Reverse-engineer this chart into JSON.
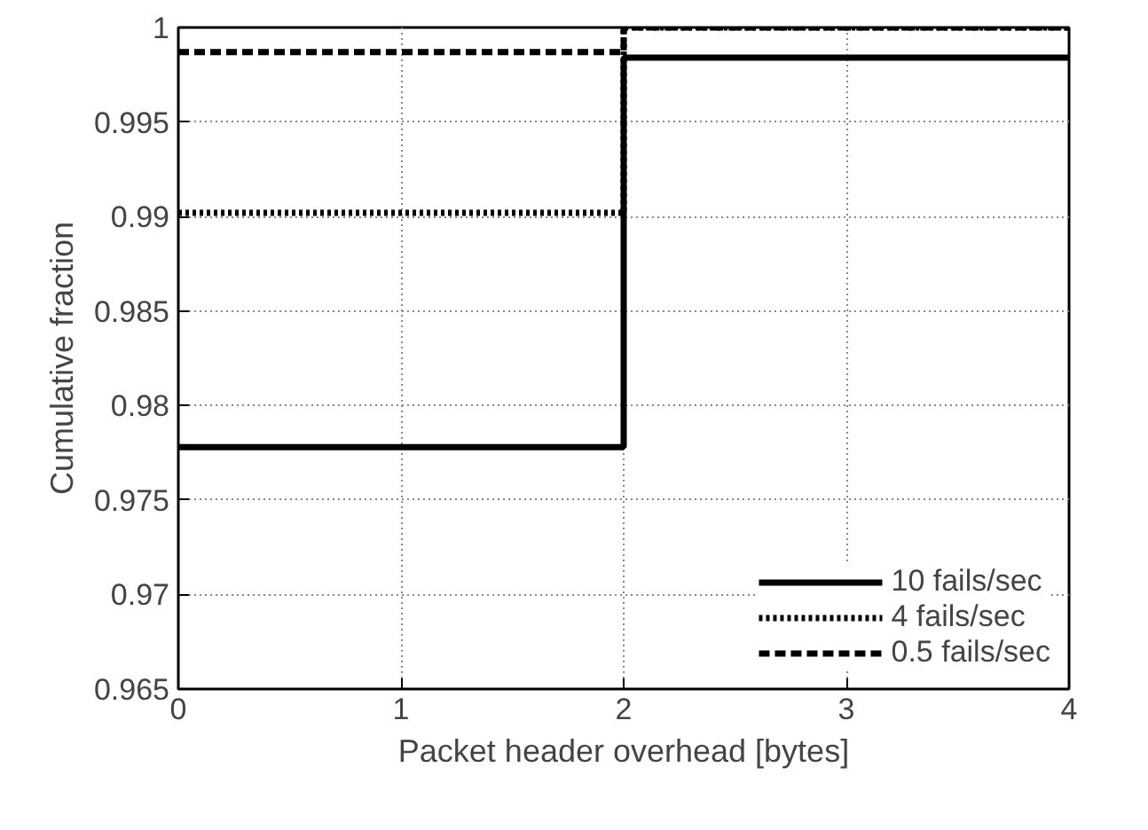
{
  "chart_data": {
    "type": "step",
    "xlabel": "Packet header overhead [bytes]",
    "ylabel": "Cumulative fraction",
    "x": [
      0,
      2,
      4
    ],
    "series": [
      {
        "name": "10 fails/sec",
        "color": "#000000",
        "line_style": "solid",
        "values": [
          0.9778,
          0.9984,
          0.9984
        ]
      },
      {
        "name": "4 fails/sec",
        "color": "#000000",
        "line_style": "dotted",
        "values": [
          0.9902,
          1.0,
          1.0
        ]
      },
      {
        "name": "0.5 fails/sec",
        "color": "#000000",
        "line_style": "dashed",
        "values": [
          0.9987,
          1.0,
          1.0
        ]
      }
    ],
    "xlim": [
      0,
      4
    ],
    "ylim": [
      0.965,
      1
    ],
    "xticks": [
      0,
      1,
      2,
      3,
      4
    ],
    "yticks": [
      0.965,
      0.97,
      0.975,
      0.98,
      0.985,
      0.99,
      0.995,
      1
    ],
    "grid": true,
    "legend": "bottom right"
  }
}
